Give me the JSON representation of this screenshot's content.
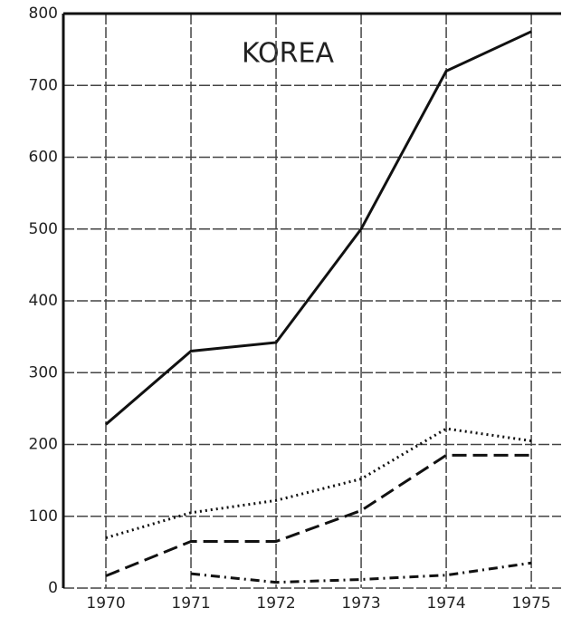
{
  "chart_data": {
    "type": "line",
    "title": "KOREA",
    "x": [
      1970,
      1971,
      1972,
      1973,
      1974,
      1975
    ],
    "xlim": [
      1969.5,
      1975.35
    ],
    "xticks": [
      1970,
      1971,
      1972,
      1973,
      1974,
      1975
    ],
    "ylim": [
      0,
      800
    ],
    "yticks": [
      0,
      100,
      200,
      300,
      400,
      500,
      600,
      700,
      800
    ],
    "grid": true,
    "series": [
      {
        "color": "#111111",
        "dash": "solid",
        "values": [
          228,
          330,
          342,
          500,
          720,
          775
        ]
      },
      {
        "color": "#111111",
        "dash": "dotted",
        "values": [
          70,
          105,
          122,
          152,
          222,
          205
        ]
      },
      {
        "color": "#111111",
        "dash": "dashed",
        "values": [
          17,
          65,
          65,
          108,
          185,
          185
        ]
      },
      {
        "color": "#111111",
        "dash": "dashdot",
        "values": [
          null,
          20,
          8,
          12,
          18,
          35
        ]
      }
    ]
  }
}
